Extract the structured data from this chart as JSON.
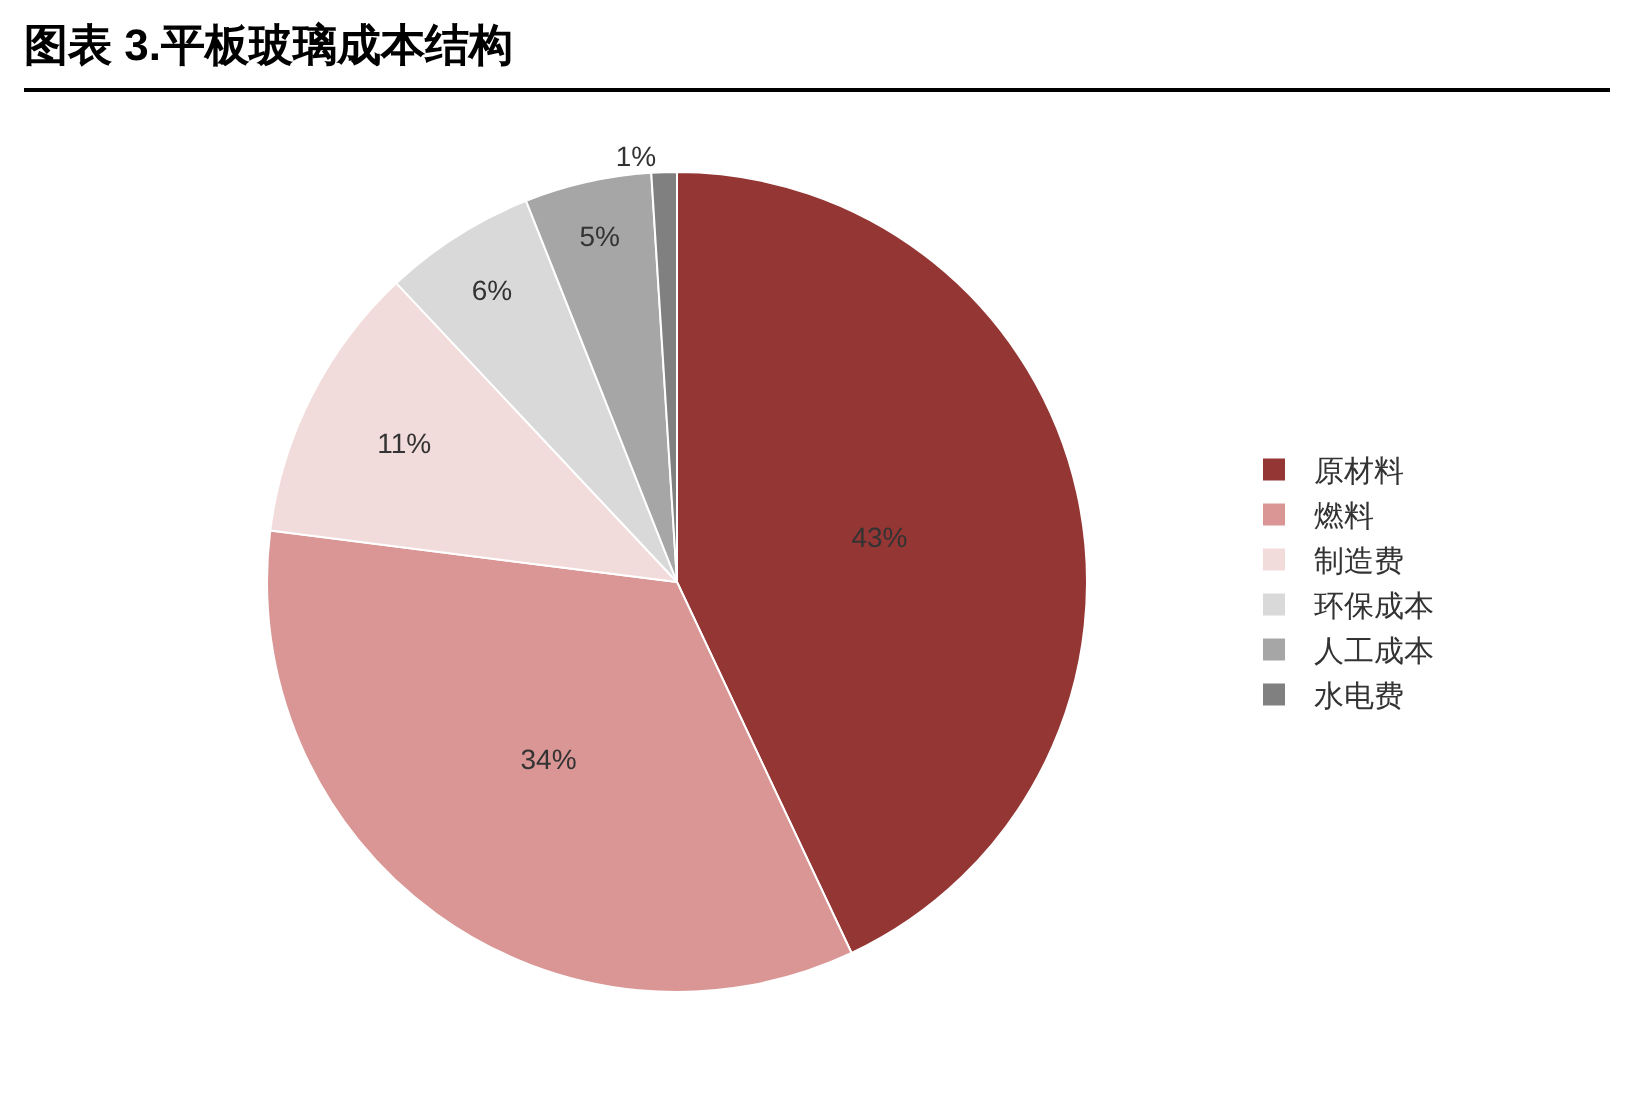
{
  "chart_data": {
    "type": "pie",
    "title": "图表 3.平板玻璃成本结构",
    "categories": [
      "原材料",
      "燃料",
      "制造费",
      "环保成本",
      "人工成本",
      "水电费"
    ],
    "values": [
      43,
      34,
      11,
      6,
      5,
      1
    ],
    "colors": [
      "#943634",
      "#d99694",
      "#f2dcdb",
      "#d9d9d9",
      "#a6a6a6",
      "#808080"
    ],
    "value_labels": [
      "43%",
      "34%",
      "11%",
      "6%",
      "5%",
      "1%"
    ],
    "legend": "right"
  }
}
